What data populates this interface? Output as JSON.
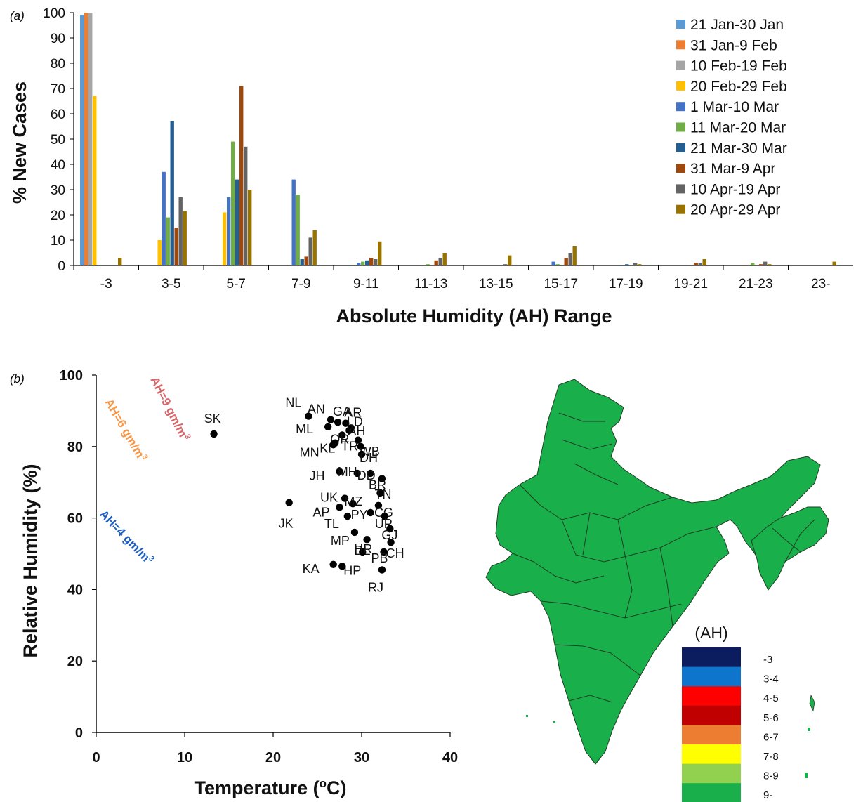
{
  "panel_a": {
    "label": "(a)"
  },
  "panel_b": {
    "label": "(b)"
  },
  "chart_data": [
    {
      "type": "bar",
      "title": "",
      "xlabel": "Absolute Humidity (AH) Range",
      "ylabel": "% New Cases",
      "ylim": [
        0,
        100
      ],
      "yticks": [
        0,
        10,
        20,
        30,
        40,
        50,
        60,
        70,
        80,
        90,
        100
      ],
      "grid": false,
      "legend_position": "top-right",
      "categories": [
        "-3",
        "3-5",
        "5-7",
        "7-9",
        "9-11",
        "11-13",
        "13-15",
        "15-17",
        "17-19",
        "19-21",
        "21-23",
        "23-"
      ],
      "series": [
        {
          "name": "21 Jan-30 Jan",
          "color": "#5b9bd5",
          "values": [
            99,
            0,
            0,
            0,
            0,
            0,
            0,
            0,
            0,
            0,
            0,
            0
          ]
        },
        {
          "name": "31 Jan-9 Feb",
          "color": "#ed7d31",
          "values": [
            100,
            0,
            0,
            0,
            0,
            0,
            0,
            0,
            0,
            0,
            0,
            0
          ]
        },
        {
          "name": "10 Feb-19 Feb",
          "color": "#a5a5a5",
          "values": [
            100,
            0,
            0,
            0,
            0,
            0,
            0,
            0,
            0,
            0,
            0,
            0
          ]
        },
        {
          "name": "20 Feb-29 Feb",
          "color": "#ffc000",
          "values": [
            67,
            10,
            21,
            0,
            0,
            0,
            0,
            0,
            0,
            0,
            0,
            0
          ]
        },
        {
          "name": "1 Mar-10 Mar",
          "color": "#4472c4",
          "values": [
            0,
            37,
            27,
            34,
            1,
            0,
            0,
            1.5,
            0,
            0,
            0,
            0
          ]
        },
        {
          "name": "11 Mar-20 Mar",
          "color": "#70ad47",
          "values": [
            0,
            19,
            49,
            28,
            1.5,
            0.5,
            0,
            0.5,
            0,
            0,
            1,
            0
          ]
        },
        {
          "name": "21 Mar-30 Mar",
          "color": "#255e91",
          "values": [
            0,
            57,
            34,
            2.5,
            2,
            0,
            0,
            0,
            0.5,
            0,
            0,
            0
          ]
        },
        {
          "name": "31 Mar-9 Apr",
          "color": "#9e480e",
          "values": [
            0,
            15,
            71,
            3.5,
            3,
            2,
            0,
            3,
            0,
            1,
            0.5,
            0
          ]
        },
        {
          "name": "10 Apr-19 Apr",
          "color": "#636363",
          "values": [
            0,
            27,
            47,
            11,
            2.5,
            3,
            0.5,
            5,
            1,
            1,
            1.5,
            0
          ]
        },
        {
          "name": "20 Apr-29 Apr",
          "color": "#997300",
          "values": [
            3,
            21.5,
            30,
            14,
            9.5,
            5,
            4,
            7.5,
            0.5,
            2.5,
            0.5,
            1.5
          ]
        }
      ]
    },
    {
      "type": "line",
      "title": "",
      "xlabel": "Temperature (",
      "xlabel_super": "o",
      "xlabel_end": "C)",
      "ylabel": "Relative Humidity (%)",
      "xlim": [
        0,
        40
      ],
      "ylim": [
        0,
        100
      ],
      "xticks": [
        0,
        10,
        20,
        30,
        40
      ],
      "yticks": [
        0,
        20,
        40,
        60,
        80,
        100
      ],
      "grid": false,
      "series": [
        {
          "name": "AH=4 gm/m",
          "super": "3",
          "ah": 4,
          "color": "#4f81bd",
          "label_color": "#1f5fbf"
        },
        {
          "name": "AH=6 gm/m",
          "super": "3",
          "ah": 6,
          "color": "#f79646",
          "label_color": "#f79646"
        },
        {
          "name": "AH=9 gm/m",
          "super": "3",
          "ah": 9,
          "color": "#d9666a",
          "label_color": "#d9666a"
        }
      ],
      "points": [
        {
          "label": "SK",
          "x": 13.3,
          "y": 83.5
        },
        {
          "label": "NL",
          "x": 24,
          "y": 88.5
        },
        {
          "label": "AN",
          "x": 26.5,
          "y": 87.5
        },
        {
          "label": "GA",
          "x": 27.3,
          "y": 86.8
        },
        {
          "label": "AR",
          "x": 28.2,
          "y": 86.5
        },
        {
          "label": "LD",
          "x": 28.8,
          "y": 85.2
        },
        {
          "label": "ML",
          "x": 26.2,
          "y": 85.5
        },
        {
          "label": "AH",
          "x": 28.6,
          "y": 84.5
        },
        {
          "label": "OR",
          "x": 27.8,
          "y": 83.2
        },
        {
          "label": "TR",
          "x": 29.6,
          "y": 81.8
        },
        {
          "label": "KL",
          "x": 27,
          "y": 81
        },
        {
          "label": "WB",
          "x": 29.9,
          "y": 80
        },
        {
          "label": "MN",
          "x": 26.8,
          "y": 80.5
        },
        {
          "label": "DH",
          "x": 30,
          "y": 77.8
        },
        {
          "label": "JH",
          "x": 27.5,
          "y": 73
        },
        {
          "label": "MH",
          "x": 29.5,
          "y": 72.5
        },
        {
          "label": "DD",
          "x": 31,
          "y": 72.5
        },
        {
          "label": "BR",
          "x": 32.3,
          "y": 71
        },
        {
          "label": "JK",
          "x": 21.8,
          "y": 64.3
        },
        {
          "label": "UK",
          "x": 28.1,
          "y": 65.5
        },
        {
          "label": "MZ",
          "x": 29,
          "y": 64
        },
        {
          "label": "TN",
          "x": 32.1,
          "y": 67
        },
        {
          "label": "AP",
          "x": 27.5,
          "y": 63
        },
        {
          "label": "CG",
          "x": 31.9,
          "y": 63.5
        },
        {
          "label": "TL",
          "x": 28.4,
          "y": 60.5
        },
        {
          "label": "PY",
          "x": 31,
          "y": 61.5
        },
        {
          "label": "UP",
          "x": 32.6,
          "y": 60.5
        },
        {
          "label": "GJ",
          "x": 33.2,
          "y": 57
        },
        {
          "label": "MP",
          "x": 29.2,
          "y": 56
        },
        {
          "label": "DL",
          "x": 30.6,
          "y": 54
        },
        {
          "label": "CH",
          "x": 33.3,
          "y": 53.2
        },
        {
          "label": "KA",
          "x": 26.8,
          "y": 47
        },
        {
          "label": "HP",
          "x": 27.8,
          "y": 46.5
        },
        {
          "label": "HR",
          "x": 30.1,
          "y": 50.5
        },
        {
          "label": "PB",
          "x": 32.5,
          "y": 50.5
        },
        {
          "label": "RJ",
          "x": 32.3,
          "y": 45.5
        }
      ]
    }
  ],
  "map": {
    "fill_color": "#19b04b",
    "legend_title": "(AH)",
    "legend": [
      {
        "label": "-3",
        "color": "#0b1d5e"
      },
      {
        "label": "3-4",
        "color": "#0d76cc"
      },
      {
        "label": "4-5",
        "color": "#fe0000"
      },
      {
        "label": "5-6",
        "color": "#c00000"
      },
      {
        "label": "6-7",
        "color": "#ed7d31"
      },
      {
        "label": "7-8",
        "color": "#ffff00"
      },
      {
        "label": "8-9",
        "color": "#92d050"
      },
      {
        "label": "9-",
        "color": "#19b04b"
      }
    ]
  }
}
